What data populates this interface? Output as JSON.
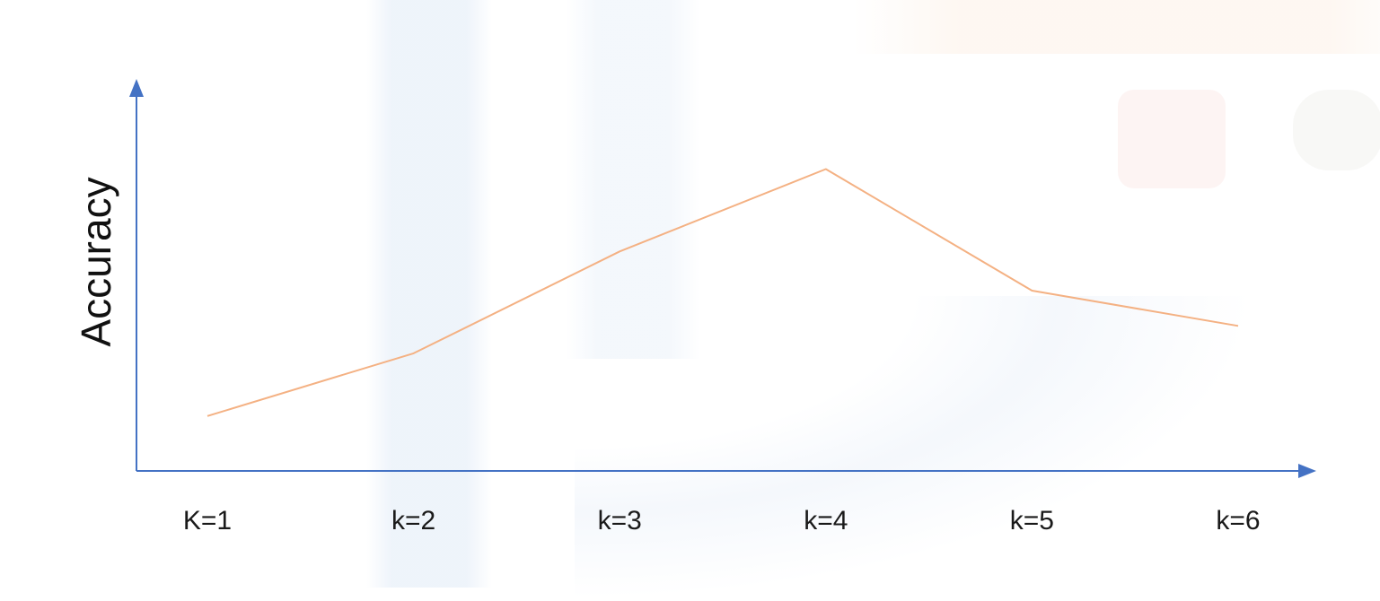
{
  "chart_data": {
    "type": "line",
    "title": "",
    "xlabel": "",
    "ylabel": "Accuracy",
    "categories": [
      "K=1",
      "k=2",
      "k=3",
      "k=4",
      "k=5",
      "k=6"
    ],
    "series": [
      {
        "values": [
          0.14,
          0.3,
          0.56,
          0.77,
          0.46,
          0.37
        ]
      }
    ],
    "ylim": [
      0,
      1
    ],
    "grid": false,
    "axis_color": "#4472C4",
    "line_color": "#F4B183"
  }
}
